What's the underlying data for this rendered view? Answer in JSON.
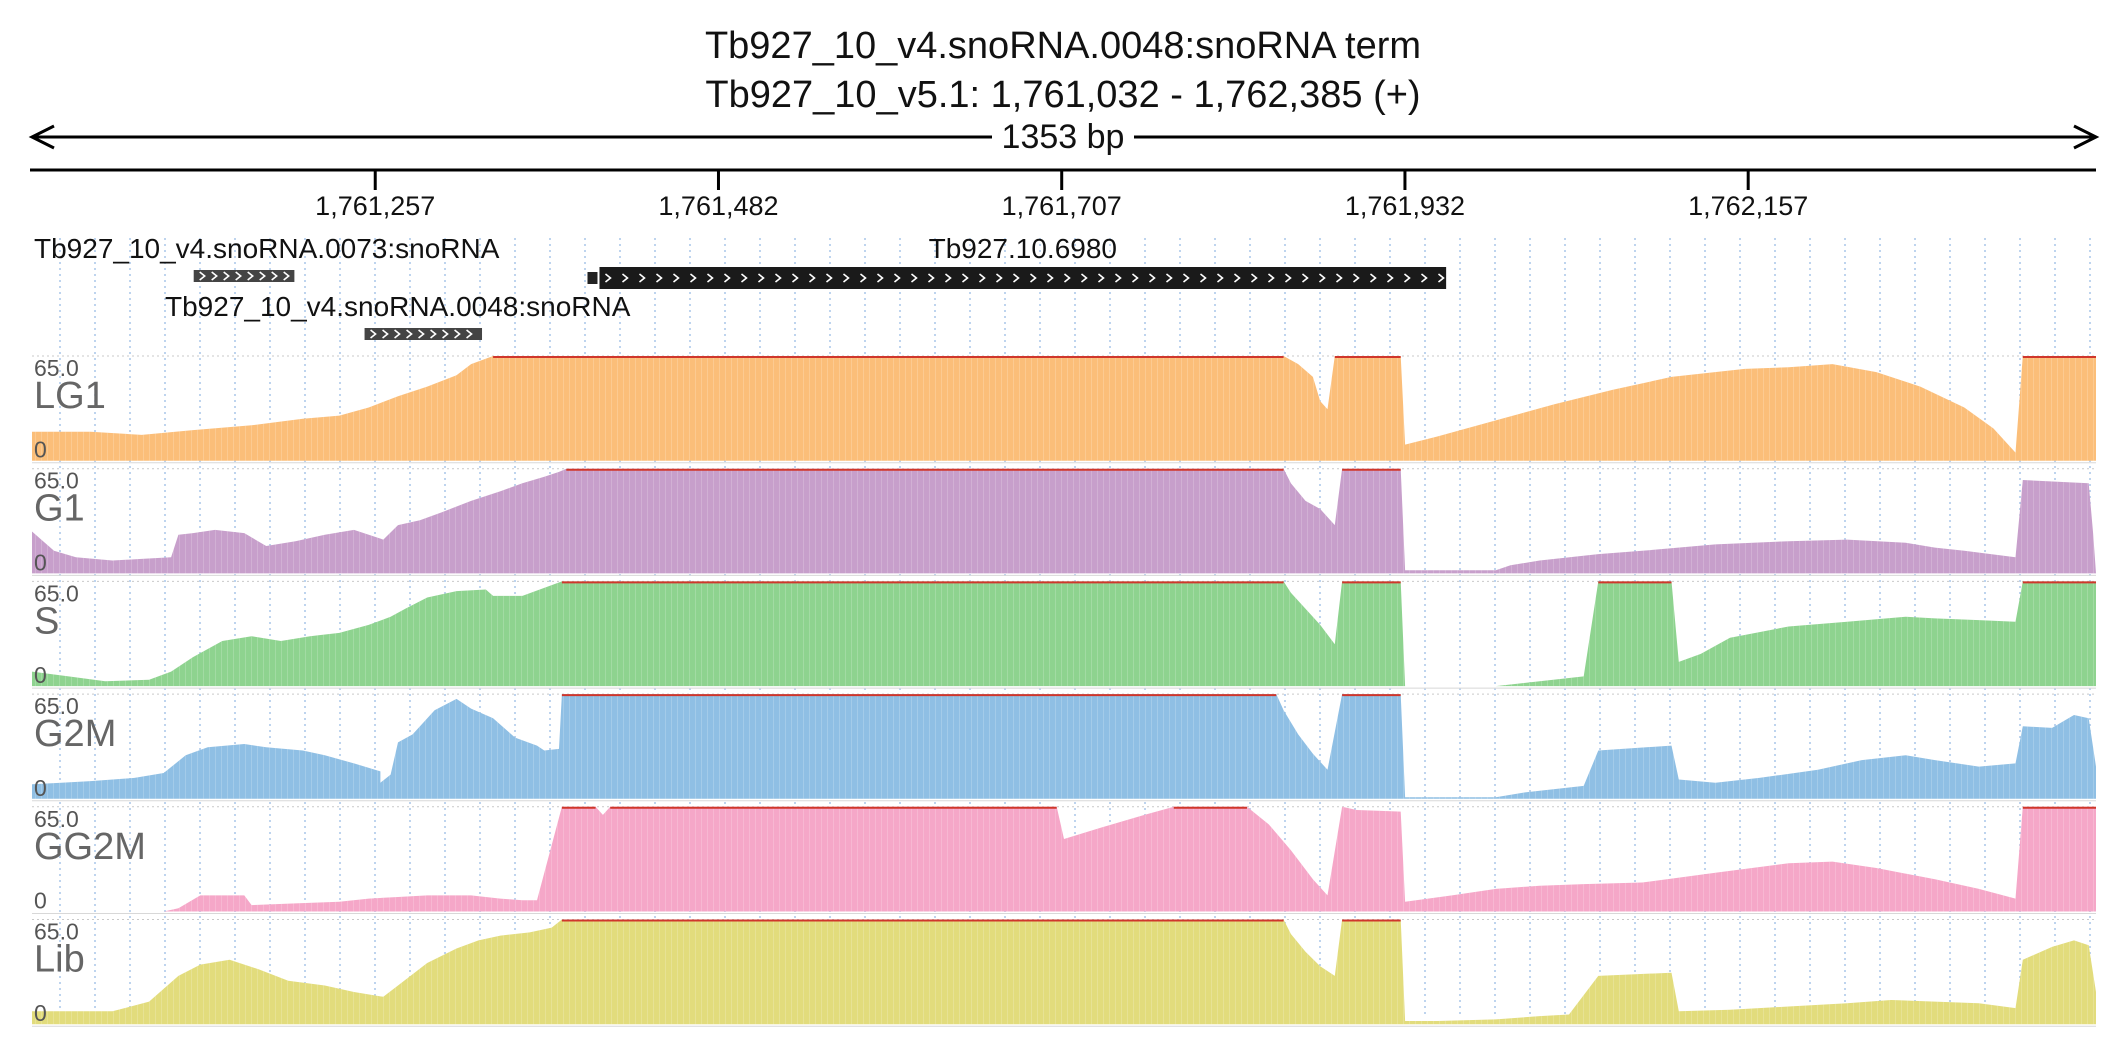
{
  "header": {
    "title": "Tb927_10_v4.snoRNA.0048:snoRNA  term",
    "subtitle": "Tb927_10_v5.1: 1,761,032 - 1,762,385 (+)",
    "span_label": "1353 bp"
  },
  "chart_data": {
    "type": "area",
    "chromosome": "Tb927_10_v5.1",
    "xlim": [
      1761032,
      1762385
    ],
    "ticks": [
      {
        "value": 1761257,
        "label": "1,761,257"
      },
      {
        "value": 1761482,
        "label": "1,761,482"
      },
      {
        "value": 1761707,
        "label": "1,761,707"
      },
      {
        "value": 1761932,
        "label": "1,761,932"
      },
      {
        "value": 1762157,
        "label": "1,762,157"
      }
    ],
    "features": [
      {
        "name": "Tb927_10_v4.snoRNA.0073:snoRNA",
        "start": 1761138,
        "end": 1761204,
        "row": 0,
        "strand": "+",
        "style": "small"
      },
      {
        "name": "Tb927.10.6980",
        "start": 1761404,
        "end": 1761959,
        "row": 0,
        "strand": "+",
        "style": "gene"
      },
      {
        "name": "Tb927_10_v4.snoRNA.0048:snoRNA",
        "start": 1761250,
        "end": 1761327,
        "row": 1,
        "strand": "+",
        "style": "small"
      }
    ],
    "tracks": [
      {
        "name": "LG1",
        "max_label": "65.0",
        "min_label": "0",
        "ylim": [
          0,
          65
        ],
        "color": "#fbbe79",
        "points": [
          [
            0,
            18
          ],
          [
            40,
            18
          ],
          [
            75,
            16
          ],
          [
            110,
            19
          ],
          [
            150,
            22
          ],
          [
            185,
            26
          ],
          [
            210,
            28
          ],
          [
            230,
            33
          ],
          [
            250,
            40
          ],
          [
            270,
            46
          ],
          [
            290,
            53
          ],
          [
            300,
            60
          ],
          [
            315,
            65
          ],
          [
            855,
            65
          ],
          [
            865,
            60
          ],
          [
            875,
            52
          ],
          [
            880,
            37
          ],
          [
            885,
            32
          ],
          [
            890,
            65
          ],
          [
            935,
            65
          ],
          [
            938,
            10
          ],
          [
            960,
            15
          ],
          [
            1000,
            25
          ],
          [
            1040,
            35
          ],
          [
            1080,
            44
          ],
          [
            1120,
            52
          ],
          [
            1170,
            57
          ],
          [
            1200,
            58
          ],
          [
            1230,
            60
          ],
          [
            1260,
            55
          ],
          [
            1290,
            46
          ],
          [
            1320,
            33
          ],
          [
            1340,
            20
          ],
          [
            1350,
            10
          ],
          [
            1355,
            5
          ],
          [
            1360,
            65
          ],
          [
            1410,
            65
          ],
          [
            1410,
            0
          ]
        ]
      },
      {
        "name": "G1",
        "max_label": "65.0",
        "min_label": "0",
        "ylim": [
          0,
          65
        ],
        "color": "#c79fcb",
        "points": [
          [
            0,
            26
          ],
          [
            15,
            14
          ],
          [
            30,
            10
          ],
          [
            55,
            8
          ],
          [
            75,
            9
          ],
          [
            95,
            10
          ],
          [
            100,
            24
          ],
          [
            110,
            25
          ],
          [
            125,
            27
          ],
          [
            145,
            25
          ],
          [
            160,
            17
          ],
          [
            180,
            20
          ],
          [
            200,
            24
          ],
          [
            220,
            27
          ],
          [
            240,
            21
          ],
          [
            250,
            30
          ],
          [
            265,
            33
          ],
          [
            280,
            38
          ],
          [
            300,
            45
          ],
          [
            320,
            51
          ],
          [
            335,
            56
          ],
          [
            350,
            60
          ],
          [
            360,
            63
          ],
          [
            365,
            65
          ],
          [
            855,
            65
          ],
          [
            860,
            56
          ],
          [
            870,
            45
          ],
          [
            880,
            40
          ],
          [
            890,
            30
          ],
          [
            895,
            65
          ],
          [
            935,
            65
          ],
          [
            938,
            2
          ],
          [
            1000,
            2
          ],
          [
            1010,
            5
          ],
          [
            1030,
            8
          ],
          [
            1070,
            12
          ],
          [
            1100,
            14
          ],
          [
            1150,
            18
          ],
          [
            1200,
            20
          ],
          [
            1240,
            21
          ],
          [
            1280,
            19
          ],
          [
            1300,
            16
          ],
          [
            1320,
            14
          ],
          [
            1355,
            10
          ],
          [
            1360,
            58
          ],
          [
            1405,
            56
          ],
          [
            1408,
            25
          ],
          [
            1410,
            0
          ]
        ]
      },
      {
        "name": "S",
        "max_label": "65.0",
        "min_label": "0",
        "ylim": [
          0,
          65
        ],
        "color": "#8ed38f",
        "points": [
          [
            0,
            9
          ],
          [
            25,
            6
          ],
          [
            50,
            3
          ],
          [
            80,
            4
          ],
          [
            95,
            9
          ],
          [
            110,
            18
          ],
          [
            130,
            28
          ],
          [
            150,
            31
          ],
          [
            170,
            28
          ],
          [
            190,
            31
          ],
          [
            210,
            33
          ],
          [
            230,
            38
          ],
          [
            245,
            43
          ],
          [
            255,
            48
          ],
          [
            270,
            55
          ],
          [
            290,
            59
          ],
          [
            310,
            60
          ],
          [
            315,
            56
          ],
          [
            335,
            56
          ],
          [
            362,
            65
          ],
          [
            855,
            65
          ],
          [
            860,
            58
          ],
          [
            870,
            48
          ],
          [
            880,
            38
          ],
          [
            890,
            26
          ],
          [
            895,
            65
          ],
          [
            935,
            65
          ],
          [
            938,
            0
          ],
          [
            1000,
            0
          ],
          [
            1020,
            2
          ],
          [
            1060,
            6
          ],
          [
            1070,
            65
          ],
          [
            1120,
            65
          ],
          [
            1125,
            15
          ],
          [
            1140,
            20
          ],
          [
            1160,
            30
          ],
          [
            1200,
            37
          ],
          [
            1240,
            40
          ],
          [
            1280,
            43
          ],
          [
            1300,
            42
          ],
          [
            1330,
            41
          ],
          [
            1355,
            40
          ],
          [
            1360,
            65
          ],
          [
            1410,
            65
          ],
          [
            1410,
            16
          ],
          [
            1410,
            0
          ]
        ]
      },
      {
        "name": "G2M",
        "max_label": "65.0",
        "min_label": "0",
        "ylim": [
          0,
          65
        ],
        "color": "#8fbfe4",
        "points": [
          [
            0,
            9
          ],
          [
            20,
            10
          ],
          [
            40,
            11
          ],
          [
            70,
            13
          ],
          [
            90,
            16
          ],
          [
            105,
            27
          ],
          [
            120,
            32
          ],
          [
            145,
            34
          ],
          [
            160,
            32
          ],
          [
            185,
            30
          ],
          [
            200,
            27
          ],
          [
            220,
            22
          ],
          [
            238,
            17
          ],
          [
            238,
            10
          ],
          [
            245,
            15
          ],
          [
            250,
            35
          ],
          [
            260,
            40
          ],
          [
            275,
            55
          ],
          [
            290,
            62
          ],
          [
            300,
            56
          ],
          [
            315,
            50
          ],
          [
            330,
            38
          ],
          [
            345,
            33
          ],
          [
            350,
            30
          ],
          [
            360,
            31
          ],
          [
            362,
            65
          ],
          [
            850,
            65
          ],
          [
            855,
            55
          ],
          [
            865,
            40
          ],
          [
            875,
            28
          ],
          [
            885,
            18
          ],
          [
            895,
            65
          ],
          [
            935,
            65
          ],
          [
            938,
            1
          ],
          [
            1000,
            1
          ],
          [
            1020,
            4
          ],
          [
            1060,
            8
          ],
          [
            1070,
            30
          ],
          [
            1120,
            33
          ],
          [
            1125,
            12
          ],
          [
            1150,
            10
          ],
          [
            1180,
            13
          ],
          [
            1220,
            18
          ],
          [
            1250,
            24
          ],
          [
            1280,
            27
          ],
          [
            1300,
            24
          ],
          [
            1330,
            20
          ],
          [
            1355,
            22
          ],
          [
            1360,
            45
          ],
          [
            1380,
            44
          ],
          [
            1395,
            52
          ],
          [
            1405,
            50
          ],
          [
            1410,
            20
          ],
          [
            1410,
            0
          ]
        ]
      },
      {
        "name": "GG2M",
        "max_label": "65.0",
        "min_label": "0",
        "ylim": [
          0,
          65
        ],
        "color": "#f5a7c8",
        "points": [
          [
            0,
            0
          ],
          [
            90,
            0
          ],
          [
            100,
            2
          ],
          [
            115,
            10
          ],
          [
            145,
            10
          ],
          [
            150,
            4
          ],
          [
            180,
            5
          ],
          [
            210,
            6
          ],
          [
            230,
            8
          ],
          [
            250,
            9
          ],
          [
            270,
            10
          ],
          [
            300,
            10
          ],
          [
            320,
            8
          ],
          [
            335,
            7
          ],
          [
            345,
            7
          ],
          [
            362,
            65
          ],
          [
            385,
            65
          ],
          [
            390,
            60
          ],
          [
            395,
            65
          ],
          [
            700,
            65
          ],
          [
            705,
            45
          ],
          [
            730,
            52
          ],
          [
            760,
            60
          ],
          [
            780,
            65
          ],
          [
            830,
            65
          ],
          [
            845,
            54
          ],
          [
            860,
            38
          ],
          [
            875,
            20
          ],
          [
            885,
            10
          ],
          [
            895,
            65
          ],
          [
            905,
            63
          ],
          [
            935,
            62
          ],
          [
            938,
            6
          ],
          [
            970,
            10
          ],
          [
            1000,
            14
          ],
          [
            1030,
            16
          ],
          [
            1060,
            17
          ],
          [
            1100,
            18
          ],
          [
            1150,
            24
          ],
          [
            1200,
            30
          ],
          [
            1230,
            31
          ],
          [
            1260,
            27
          ],
          [
            1300,
            20
          ],
          [
            1330,
            14
          ],
          [
            1355,
            8
          ],
          [
            1360,
            65
          ],
          [
            1410,
            65
          ],
          [
            1410,
            0
          ]
        ]
      },
      {
        "name": "Lib",
        "max_label": "65.0",
        "min_label": "0",
        "ylim": [
          0,
          65
        ],
        "color": "#e2dc7c",
        "points": [
          [
            0,
            8
          ],
          [
            30,
            8
          ],
          [
            55,
            8
          ],
          [
            80,
            14
          ],
          [
            100,
            30
          ],
          [
            115,
            37
          ],
          [
            135,
            40
          ],
          [
            155,
            34
          ],
          [
            175,
            27
          ],
          [
            200,
            24
          ],
          [
            220,
            20
          ],
          [
            240,
            17
          ],
          [
            250,
            24
          ],
          [
            270,
            38
          ],
          [
            290,
            47
          ],
          [
            305,
            52
          ],
          [
            320,
            55
          ],
          [
            340,
            57
          ],
          [
            355,
            60
          ],
          [
            362,
            65
          ],
          [
            855,
            65
          ],
          [
            860,
            56
          ],
          [
            870,
            45
          ],
          [
            880,
            36
          ],
          [
            890,
            30
          ],
          [
            895,
            65
          ],
          [
            935,
            65
          ],
          [
            938,
            2
          ],
          [
            960,
            2
          ],
          [
            1000,
            3
          ],
          [
            1030,
            5
          ],
          [
            1050,
            6
          ],
          [
            1070,
            30
          ],
          [
            1120,
            32
          ],
          [
            1125,
            8
          ],
          [
            1160,
            9
          ],
          [
            1200,
            11
          ],
          [
            1240,
            13
          ],
          [
            1270,
            15
          ],
          [
            1300,
            14
          ],
          [
            1330,
            13
          ],
          [
            1355,
            10
          ],
          [
            1360,
            40
          ],
          [
            1380,
            48
          ],
          [
            1395,
            52
          ],
          [
            1405,
            49
          ],
          [
            1410,
            20
          ],
          [
            1410,
            0
          ]
        ]
      }
    ]
  }
}
